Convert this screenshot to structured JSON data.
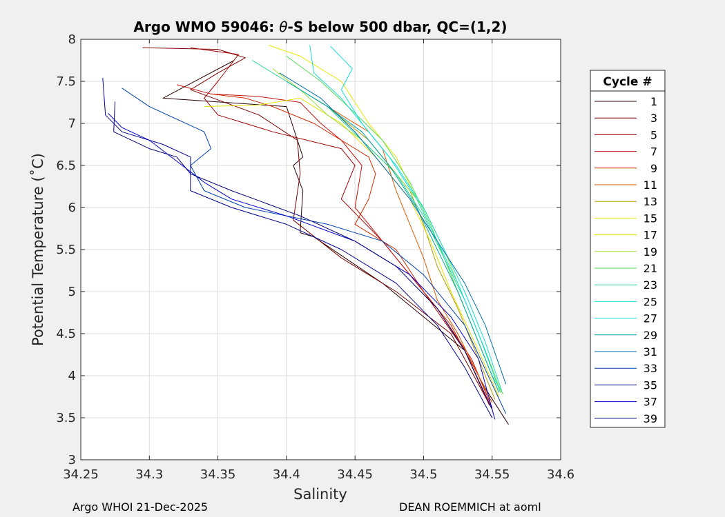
{
  "chart_data": {
    "type": "line",
    "title_prefix": "Argo WMO 59046: ",
    "title_theta": "θ",
    "title_suffix": "-S below 500 dbar,  QC=(1,2)",
    "xlabel": "Salinity",
    "ylabel": "Potential Temperature (˚C)",
    "xlim": [
      34.25,
      34.6
    ],
    "ylim": [
      3,
      8
    ],
    "xticks": [
      "34.25",
      "34.3",
      "34.35",
      "34.4",
      "34.45",
      "34.5",
      "34.55",
      "34.6"
    ],
    "yticks": [
      "3",
      "3.5",
      "4",
      "4.5",
      "5",
      "5.5",
      "6",
      "6.5",
      "7",
      "7.5",
      "8"
    ],
    "grid": true,
    "legend": {
      "title": "Cycle #",
      "placement": "right",
      "entries": [
        "1",
        "3",
        "5",
        "7",
        "9",
        "11",
        "13",
        "15",
        "17",
        "19",
        "21",
        "23",
        "25",
        "27",
        "29",
        "31",
        "33",
        "35",
        "37",
        "39"
      ],
      "colors": [
        "#2a0000",
        "#7a0000",
        "#a00000",
        "#c81010",
        "#d22a00",
        "#d85a00",
        "#b09a00",
        "#e8e800",
        "#e2e200",
        "#a0e040",
        "#52de52",
        "#20d890",
        "#18dcd0",
        "#10e0e0",
        "#00a8a8",
        "#0070a8",
        "#0040b0",
        "#000090",
        "#0000d0",
        "#000078"
      ]
    },
    "series": [
      {
        "name": "1",
        "color": "#2a0000",
        "points": [
          [
            34.362,
            7.75
          ],
          [
            34.31,
            7.3
          ],
          [
            34.4,
            7.2
          ],
          [
            34.412,
            6.6
          ],
          [
            34.405,
            6.5
          ],
          [
            34.412,
            6.2
          ],
          [
            34.41,
            5.7
          ],
          [
            34.42,
            5.65
          ],
          [
            34.47,
            5.1
          ],
          [
            34.5,
            4.7
          ],
          [
            34.53,
            4.3
          ],
          [
            34.545,
            3.85
          ],
          [
            34.562,
            3.42
          ]
        ]
      },
      {
        "name": "3",
        "color": "#7a0000",
        "points": [
          [
            34.295,
            7.9
          ],
          [
            34.35,
            7.88
          ],
          [
            34.37,
            7.78
          ],
          [
            34.35,
            7.6
          ],
          [
            34.33,
            7.4
          ],
          [
            34.38,
            7.1
          ],
          [
            34.408,
            6.8
          ],
          [
            34.41,
            6.4
          ],
          [
            34.405,
            5.85
          ],
          [
            34.44,
            5.4
          ],
          [
            34.48,
            5.0
          ],
          [
            34.52,
            4.5
          ],
          [
            34.55,
            3.6
          ]
        ]
      },
      {
        "name": "5",
        "color": "#a00000",
        "points": [
          [
            34.33,
            7.9
          ],
          [
            34.365,
            7.82
          ],
          [
            34.35,
            7.5
          ],
          [
            34.34,
            7.3
          ],
          [
            34.35,
            7.1
          ],
          [
            34.39,
            6.9
          ],
          [
            34.44,
            6.7
          ],
          [
            34.45,
            6.5
          ],
          [
            34.44,
            6.1
          ],
          [
            34.47,
            5.6
          ],
          [
            34.5,
            5.0
          ],
          [
            34.53,
            4.3
          ],
          [
            34.548,
            3.65
          ]
        ]
      },
      {
        "name": "7",
        "color": "#c81010",
        "points": [
          [
            34.32,
            7.46
          ],
          [
            34.345,
            7.35
          ],
          [
            34.38,
            7.32
          ],
          [
            34.41,
            7.25
          ],
          [
            34.425,
            7.0
          ],
          [
            34.44,
            6.8
          ],
          [
            34.455,
            6.5
          ],
          [
            34.45,
            6.0
          ],
          [
            34.48,
            5.4
          ],
          [
            34.51,
            4.8
          ],
          [
            34.535,
            4.2
          ],
          [
            34.548,
            3.7
          ]
        ]
      },
      {
        "name": "9",
        "color": "#d22a00",
        "points": [
          [
            34.345,
            7.35
          ],
          [
            34.37,
            7.3
          ],
          [
            34.39,
            7.2
          ],
          [
            34.42,
            7.0
          ],
          [
            34.44,
            6.8
          ],
          [
            34.46,
            6.6
          ],
          [
            34.465,
            6.4
          ],
          [
            34.46,
            6.1
          ],
          [
            34.45,
            5.8
          ],
          [
            34.48,
            5.5
          ],
          [
            34.5,
            5.0
          ],
          [
            34.52,
            4.6
          ],
          [
            34.54,
            4.0
          ],
          [
            34.55,
            3.62
          ]
        ]
      },
      {
        "name": "11",
        "color": "#d85a00",
        "points": [
          [
            34.42,
            7.3
          ],
          [
            34.44,
            7.1
          ],
          [
            34.46,
            6.9
          ],
          [
            34.47,
            6.7
          ],
          [
            34.48,
            6.2
          ],
          [
            34.49,
            5.8
          ],
          [
            34.5,
            5.4
          ],
          [
            34.51,
            4.9
          ],
          [
            34.525,
            4.5
          ],
          [
            34.54,
            4.0
          ],
          [
            34.55,
            3.68
          ]
        ]
      },
      {
        "name": "13",
        "color": "#b09a00",
        "points": [
          [
            34.43,
            7.2
          ],
          [
            34.445,
            7.0
          ],
          [
            34.46,
            6.8
          ],
          [
            34.475,
            6.5
          ],
          [
            34.49,
            6.2
          ],
          [
            34.5,
            5.8
          ],
          [
            34.51,
            5.3
          ],
          [
            34.525,
            4.8
          ],
          [
            34.54,
            4.2
          ],
          [
            34.552,
            3.72
          ]
        ]
      },
      {
        "name": "15",
        "color": "#e8e800",
        "points": [
          [
            34.387,
            7.93
          ],
          [
            34.41,
            7.8
          ],
          [
            34.44,
            7.5
          ],
          [
            34.46,
            7.0
          ],
          [
            34.48,
            6.6
          ],
          [
            34.495,
            6.1
          ],
          [
            34.51,
            5.6
          ],
          [
            34.525,
            5.0
          ],
          [
            34.54,
            4.4
          ],
          [
            34.555,
            3.8
          ]
        ]
      },
      {
        "name": "17",
        "color": "#e2e200",
        "points": [
          [
            34.34,
            7.2
          ],
          [
            34.38,
            7.22
          ],
          [
            34.41,
            7.3
          ],
          [
            34.44,
            7.0
          ],
          [
            34.465,
            6.6
          ],
          [
            34.49,
            6.1
          ],
          [
            34.505,
            5.6
          ],
          [
            34.52,
            5.0
          ],
          [
            34.54,
            4.3
          ],
          [
            34.555,
            3.75
          ]
        ]
      },
      {
        "name": "19",
        "color": "#a0e040",
        "points": [
          [
            34.39,
            7.65
          ],
          [
            34.41,
            7.4
          ],
          [
            34.43,
            7.1
          ],
          [
            34.455,
            6.8
          ],
          [
            34.48,
            6.4
          ],
          [
            34.5,
            6.0
          ],
          [
            34.515,
            5.5
          ],
          [
            34.53,
            4.9
          ],
          [
            34.545,
            4.3
          ],
          [
            34.557,
            3.8
          ]
        ]
      },
      {
        "name": "21",
        "color": "#52de52",
        "points": [
          [
            34.4,
            7.8
          ],
          [
            34.425,
            7.5
          ],
          [
            34.445,
            7.2
          ],
          [
            34.47,
            6.8
          ],
          [
            34.49,
            6.3
          ],
          [
            34.505,
            5.8
          ],
          [
            34.52,
            5.2
          ],
          [
            34.535,
            4.6
          ],
          [
            34.55,
            4.0
          ],
          [
            34.558,
            3.78
          ]
        ]
      },
      {
        "name": "23",
        "color": "#20d890",
        "points": [
          [
            34.375,
            7.75
          ],
          [
            34.4,
            7.5
          ],
          [
            34.43,
            7.2
          ],
          [
            34.455,
            6.8
          ],
          [
            34.48,
            6.4
          ],
          [
            34.5,
            5.9
          ],
          [
            34.515,
            5.4
          ],
          [
            34.53,
            4.9
          ],
          [
            34.545,
            4.3
          ],
          [
            34.556,
            3.8
          ]
        ]
      },
      {
        "name": "25",
        "color": "#18dcd0",
        "points": [
          [
            34.417,
            7.93
          ],
          [
            34.42,
            7.6
          ],
          [
            34.44,
            7.3
          ],
          [
            34.46,
            6.9
          ],
          [
            34.48,
            6.5
          ],
          [
            34.5,
            6.0
          ],
          [
            34.515,
            5.5
          ],
          [
            34.53,
            5.0
          ],
          [
            34.545,
            4.4
          ],
          [
            34.557,
            3.82
          ]
        ]
      },
      {
        "name": "27",
        "color": "#10e0e0",
        "points": [
          [
            34.432,
            7.92
          ],
          [
            34.448,
            7.65
          ],
          [
            34.44,
            7.4
          ],
          [
            34.455,
            7.0
          ],
          [
            34.475,
            6.6
          ],
          [
            34.495,
            6.1
          ],
          [
            34.51,
            5.6
          ],
          [
            34.525,
            5.1
          ],
          [
            34.54,
            4.5
          ],
          [
            34.555,
            3.85
          ]
        ]
      },
      {
        "name": "29",
        "color": "#00a8a8",
        "points": [
          [
            34.4,
            7.5
          ],
          [
            34.43,
            7.2
          ],
          [
            34.455,
            6.9
          ],
          [
            34.475,
            6.5
          ],
          [
            34.495,
            6.0
          ],
          [
            34.51,
            5.5
          ],
          [
            34.525,
            5.0
          ],
          [
            34.54,
            4.4
          ],
          [
            34.555,
            3.8
          ]
        ]
      },
      {
        "name": "31",
        "color": "#0070a8",
        "points": [
          [
            34.395,
            7.6
          ],
          [
            34.425,
            7.3
          ],
          [
            34.45,
            6.9
          ],
          [
            34.47,
            6.5
          ],
          [
            34.49,
            6.1
          ],
          [
            34.51,
            5.6
          ],
          [
            34.53,
            5.1
          ],
          [
            34.545,
            4.6
          ],
          [
            34.56,
            3.9
          ]
        ]
      },
      {
        "name": "33",
        "color": "#0040b0",
        "points": [
          [
            34.28,
            7.42
          ],
          [
            34.3,
            7.2
          ],
          [
            34.34,
            6.9
          ],
          [
            34.345,
            6.7
          ],
          [
            34.33,
            6.5
          ],
          [
            34.34,
            6.2
          ],
          [
            34.37,
            6.0
          ],
          [
            34.43,
            5.8
          ],
          [
            34.47,
            5.6
          ],
          [
            34.5,
            5.2
          ],
          [
            34.53,
            4.6
          ],
          [
            34.55,
            3.9
          ],
          [
            34.56,
            3.55
          ]
        ]
      },
      {
        "name": "35",
        "color": "#000090",
        "points": [
          [
            34.266,
            7.54
          ],
          [
            34.268,
            7.1
          ],
          [
            34.28,
            6.9
          ],
          [
            34.31,
            6.75
          ],
          [
            34.33,
            6.6
          ],
          [
            34.33,
            6.2
          ],
          [
            34.36,
            6.0
          ],
          [
            34.4,
            5.8
          ],
          [
            34.44,
            5.5
          ],
          [
            34.48,
            5.1
          ],
          [
            34.51,
            4.6
          ],
          [
            34.53,
            4.1
          ],
          [
            34.55,
            3.5
          ]
        ]
      },
      {
        "name": "37",
        "color": "#0000d0",
        "points": [
          [
            34.27,
            7.12
          ],
          [
            34.28,
            6.95
          ],
          [
            34.3,
            6.8
          ],
          [
            34.32,
            6.55
          ],
          [
            34.34,
            6.3
          ],
          [
            34.36,
            6.1
          ],
          [
            34.4,
            5.9
          ],
          [
            34.45,
            5.6
          ],
          [
            34.49,
            5.2
          ],
          [
            34.52,
            4.7
          ],
          [
            34.54,
            4.2
          ],
          [
            34.552,
            3.48
          ]
        ]
      },
      {
        "name": "39",
        "color": "#000078",
        "points": [
          [
            34.275,
            7.26
          ],
          [
            34.274,
            6.9
          ],
          [
            34.3,
            6.7
          ],
          [
            34.32,
            6.6
          ],
          [
            34.33,
            6.4
          ],
          [
            34.36,
            6.2
          ],
          [
            34.41,
            5.9
          ],
          [
            34.45,
            5.6
          ],
          [
            34.48,
            5.3
          ],
          [
            34.51,
            4.8
          ],
          [
            34.53,
            4.3
          ],
          [
            34.55,
            3.6
          ]
        ]
      }
    ]
  },
  "footer": {
    "left": "Argo WHOI 21-Dec-2025",
    "right": "DEAN ROEMMICH at aoml"
  }
}
